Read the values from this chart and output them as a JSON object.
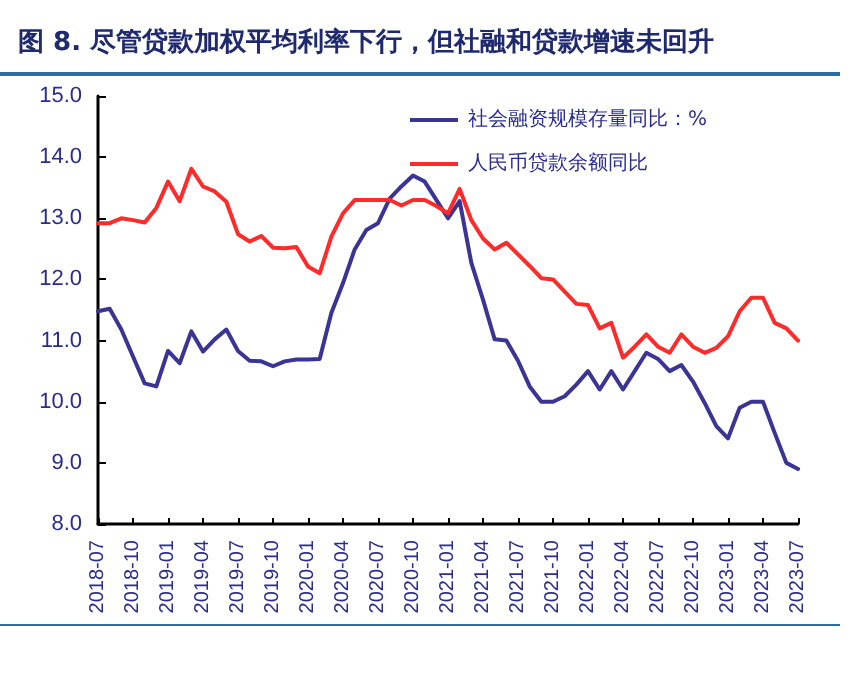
{
  "chart_data": {
    "type": "line",
    "title": "图 8. 尽管贷款加权平均利率下行，但社融和贷款增速未回升",
    "categories": [
      "2018-07",
      null,
      null,
      "2018-10",
      null,
      null,
      "2019-01",
      null,
      null,
      "2019-04",
      null,
      null,
      "2019-07",
      null,
      null,
      "2019-10",
      null,
      null,
      "2020-01",
      null,
      null,
      "2020-04",
      null,
      null,
      "2020-07",
      null,
      null,
      "2020-10",
      null,
      null,
      "2021-01",
      null,
      null,
      "2021-04",
      null,
      null,
      "2021-07",
      null,
      null,
      "2021-10",
      null,
      null,
      "2022-01",
      null,
      null,
      "2022-04",
      null,
      null,
      "2022-07",
      null,
      null,
      "2022-10",
      null,
      null,
      "2023-01",
      null,
      null,
      "2023-04",
      null,
      null,
      "2023-07"
    ],
    "series": [
      {
        "name": "社会融资规模存量同比：%",
        "color": "#3a3494",
        "values": [
          11.48,
          11.52,
          11.18,
          10.74,
          10.3,
          10.25,
          10.83,
          10.63,
          11.15,
          10.82,
          11.02,
          11.18,
          10.83,
          10.67,
          10.66,
          10.58,
          10.66,
          10.69,
          10.69,
          10.7,
          11.45,
          11.94,
          12.49,
          12.81,
          12.92,
          13.32,
          13.52,
          13.7,
          13.6,
          13.3,
          13.0,
          13.28,
          12.27,
          11.67,
          11.02,
          11.0,
          10.67,
          10.25,
          10.0,
          10.0,
          10.09,
          10.28,
          10.5,
          10.2,
          10.5,
          10.2,
          10.5,
          10.8,
          10.7,
          10.5,
          10.6,
          10.33,
          9.98,
          9.6,
          9.4,
          9.9,
          10.0,
          10.0,
          9.49,
          9.0,
          8.9
        ]
      },
      {
        "name": "人民币贷款余额同比",
        "color": "#ff2a2a",
        "values": [
          12.92,
          12.92,
          13.0,
          12.97,
          12.93,
          13.17,
          13.6,
          13.28,
          13.81,
          13.52,
          13.44,
          13.27,
          12.74,
          12.62,
          12.71,
          12.52,
          12.51,
          12.53,
          12.21,
          12.1,
          12.7,
          13.08,
          13.3,
          13.3,
          13.3,
          13.3,
          13.21,
          13.3,
          13.3,
          13.2,
          13.08,
          13.48,
          12.97,
          12.67,
          12.49,
          12.6,
          12.41,
          12.22,
          12.02,
          12.0,
          11.8,
          11.6,
          11.58,
          11.2,
          11.29,
          10.72,
          10.9,
          11.1,
          10.9,
          10.8,
          11.1,
          10.9,
          10.8,
          10.88,
          11.07,
          11.48,
          11.7,
          11.7,
          11.29,
          11.2,
          11.0
        ]
      }
    ],
    "ylim": [
      8,
      15
    ],
    "yticks": [
      {
        "value": 8,
        "label": "8.0"
      },
      {
        "value": 9,
        "label": "9.0"
      },
      {
        "value": 10,
        "label": "10.0"
      },
      {
        "value": 11,
        "label": "11.0"
      },
      {
        "value": 12,
        "label": "12.0"
      },
      {
        "value": 13,
        "label": "13.0"
      },
      {
        "value": 14,
        "label": "14.0"
      },
      {
        "value": 15,
        "label": "15.0"
      }
    ],
    "grid": false,
    "legend": "top right",
    "marker": "none",
    "line_style": "solid"
  }
}
